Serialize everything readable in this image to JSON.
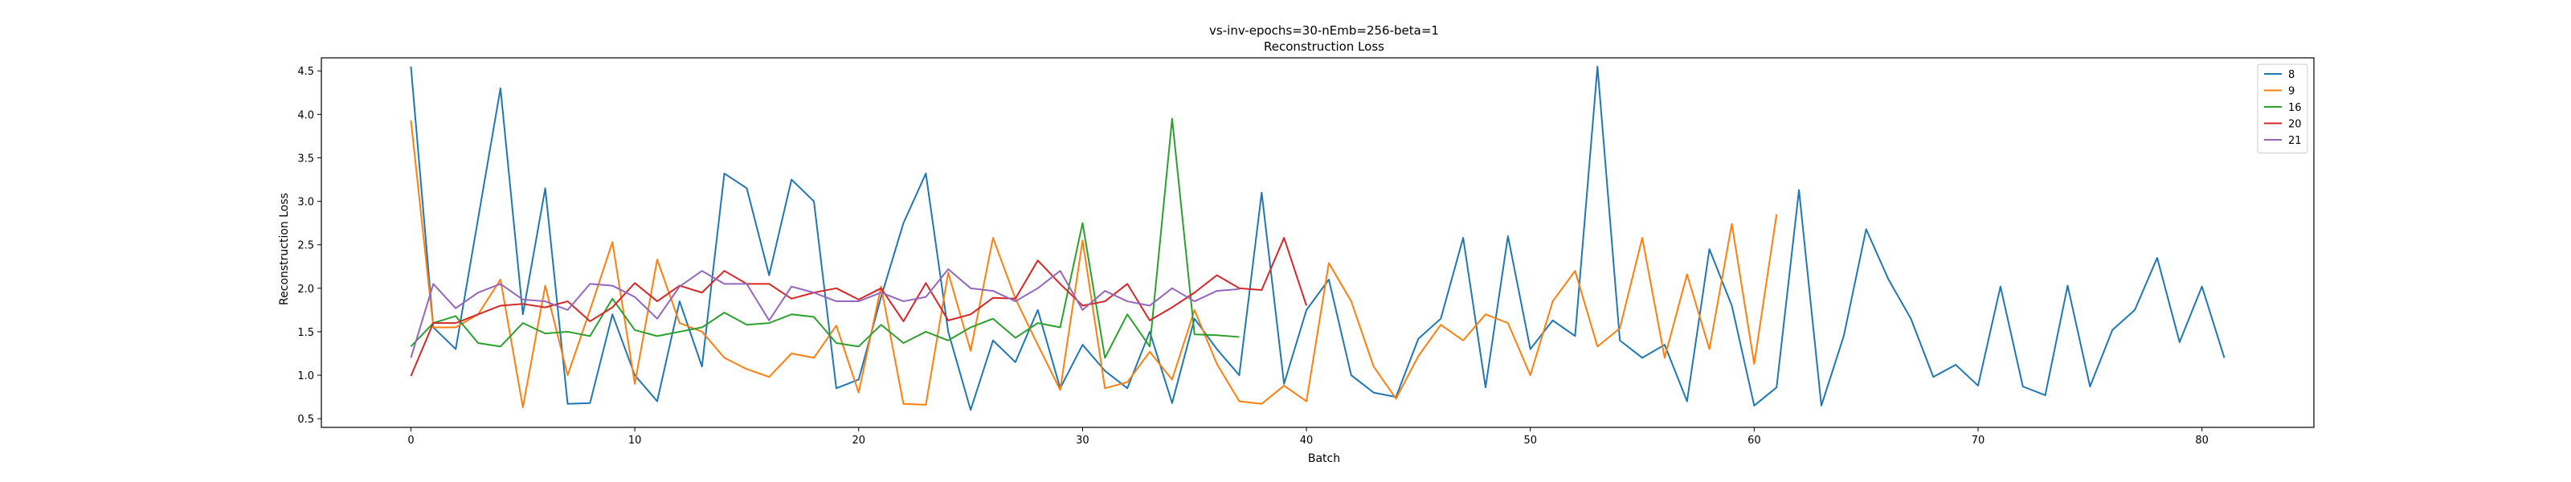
{
  "chart_data": {
    "type": "line",
    "title": "vs-inv-epochs=30-nEmb=256-beta=1",
    "subtitle": "Reconstruction Loss",
    "xlabel": "Batch",
    "ylabel": "Reconstruction Loss",
    "xlim": [
      -4,
      85
    ],
    "ylim": [
      0.4,
      4.65
    ],
    "xticks": [
      0,
      10,
      20,
      30,
      40,
      50,
      60,
      70,
      80
    ],
    "yticks": [
      0.5,
      1.0,
      1.5,
      2.0,
      2.5,
      3.0,
      3.5,
      4.0,
      4.5
    ],
    "ytick_labels": [
      "0.5",
      "1.0",
      "1.5",
      "2.0",
      "2.5",
      "3.0",
      "3.5",
      "4.0",
      "4.5"
    ],
    "grid": false,
    "legend_position": "top-right",
    "series": [
      {
        "name": "8",
        "color": "#1f77b4",
        "values": [
          4.55,
          1.55,
          1.3,
          2.8,
          4.3,
          1.7,
          3.15,
          0.67,
          0.68,
          1.7,
          1.0,
          0.7,
          1.85,
          1.1,
          3.32,
          3.15,
          2.15,
          3.25,
          3.0,
          0.85,
          0.95,
          1.9,
          2.75,
          3.32,
          1.5,
          0.6,
          1.4,
          1.15,
          1.75,
          0.85,
          1.35,
          1.05,
          0.85,
          1.5,
          0.68,
          1.65,
          1.3,
          1.0,
          3.1,
          0.9,
          1.75,
          2.1,
          1.0,
          0.8,
          0.75,
          1.42,
          1.65,
          2.58,
          0.86,
          2.6,
          1.3,
          1.63,
          1.45,
          4.55,
          1.4,
          1.2,
          1.35,
          0.7,
          2.45,
          1.8,
          0.65,
          0.86,
          3.13,
          0.65,
          1.45,
          2.68,
          2.1,
          1.65,
          0.98,
          1.12,
          0.88,
          2.02,
          0.87,
          0.77,
          2.03,
          0.87,
          1.52,
          1.75,
          2.35,
          1.38,
          2.02,
          1.2
        ]
      },
      {
        "name": "9",
        "color": "#ff7f0e",
        "values": [
          3.93,
          1.55,
          1.55,
          1.7,
          2.1,
          0.63,
          2.03,
          1.0,
          1.75,
          2.53,
          0.9,
          2.33,
          1.6,
          1.5,
          1.2,
          1.07,
          0.98,
          1.25,
          1.2,
          1.57,
          0.8,
          2.02,
          0.67,
          0.66,
          2.18,
          1.28,
          2.58,
          1.88,
          1.35,
          0.83,
          2.55,
          0.85,
          0.92,
          1.27,
          0.95,
          1.75,
          1.13,
          0.7,
          0.67,
          0.88,
          0.7,
          2.29,
          1.85,
          1.1,
          0.73,
          1.22,
          1.58,
          1.4,
          1.7,
          1.6,
          1.0,
          1.85,
          2.2,
          1.33,
          1.54,
          2.58,
          1.2,
          2.16,
          1.3,
          2.74,
          1.13,
          2.85
        ]
      },
      {
        "name": "16",
        "color": "#2ca02c",
        "values": [
          1.33,
          1.6,
          1.68,
          1.37,
          1.33,
          1.6,
          1.48,
          1.5,
          1.45,
          1.88,
          1.52,
          1.45,
          1.5,
          1.55,
          1.72,
          1.58,
          1.6,
          1.7,
          1.67,
          1.37,
          1.33,
          1.58,
          1.37,
          1.5,
          1.4,
          1.55,
          1.65,
          1.43,
          1.6,
          1.55,
          2.75,
          1.2,
          1.7,
          1.33,
          3.95,
          1.47,
          1.46,
          1.44
        ]
      },
      {
        "name": "20",
        "color": "#d62728",
        "values": [
          0.99,
          1.6,
          1.6,
          1.7,
          1.8,
          1.82,
          1.78,
          1.85,
          1.62,
          1.78,
          2.06,
          1.85,
          2.03,
          1.95,
          2.2,
          2.05,
          2.05,
          1.88,
          1.95,
          2.0,
          1.87,
          2.0,
          1.62,
          2.06,
          1.63,
          1.7,
          1.89,
          1.88,
          2.32,
          2.05,
          1.8,
          1.85,
          2.05,
          1.63,
          1.78,
          1.95,
          2.15,
          2.0,
          1.98,
          2.58,
          1.8
        ]
      },
      {
        "name": "21",
        "color": "#9467bd",
        "values": [
          1.2,
          2.05,
          1.77,
          1.95,
          2.05,
          1.87,
          1.85,
          1.75,
          2.05,
          2.03,
          1.9,
          1.65,
          2.02,
          2.2,
          2.05,
          2.05,
          1.63,
          2.02,
          1.95,
          1.85,
          1.85,
          1.95,
          1.85,
          1.9,
          2.22,
          2.0,
          1.97,
          1.85,
          2.0,
          2.2,
          1.75,
          1.97,
          1.85,
          1.8,
          2.0,
          1.85,
          1.97,
          1.99
        ]
      }
    ]
  }
}
